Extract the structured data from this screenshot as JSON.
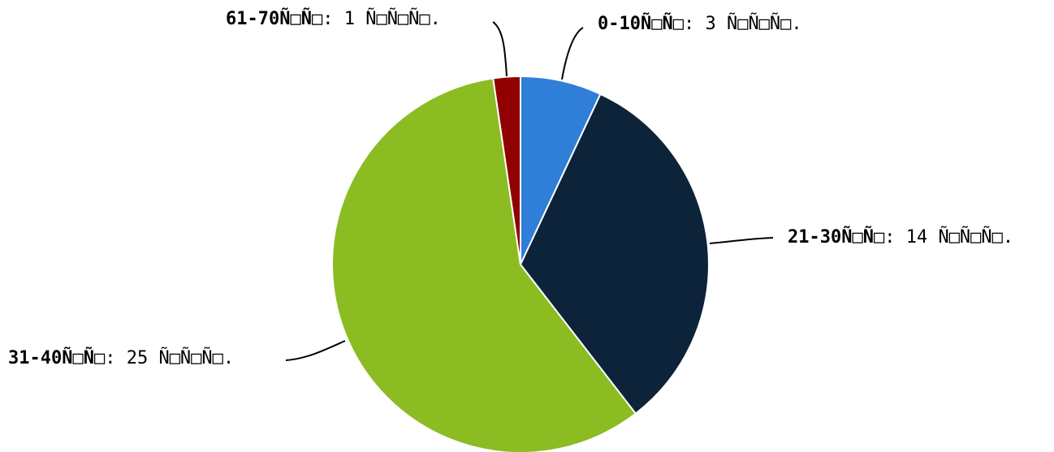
{
  "chart_data": {
    "type": "pie",
    "title": "",
    "start_angle_deg": 0,
    "direction": "clockwise",
    "slices": [
      {
        "label": "0-10Ñ□Ñ□",
        "value": 3,
        "value_text": ": 3 Ñ□Ñ□Ñ□.",
        "color": "#2f7ed8"
      },
      {
        "label": "21-30Ñ□Ñ□",
        "value": 14,
        "value_text": ": 14 Ñ□Ñ□Ñ□.",
        "color": "#0d233a"
      },
      {
        "label": "31-40Ñ□Ñ□",
        "value": 25,
        "value_text": ": 25 Ñ□Ñ□Ñ□.",
        "color": "#8bbc21"
      },
      {
        "label": "61-70Ñ□Ñ□",
        "value": 1,
        "value_text": ": 1 Ñ□Ñ□Ñ□.",
        "color": "#910000"
      }
    ]
  }
}
